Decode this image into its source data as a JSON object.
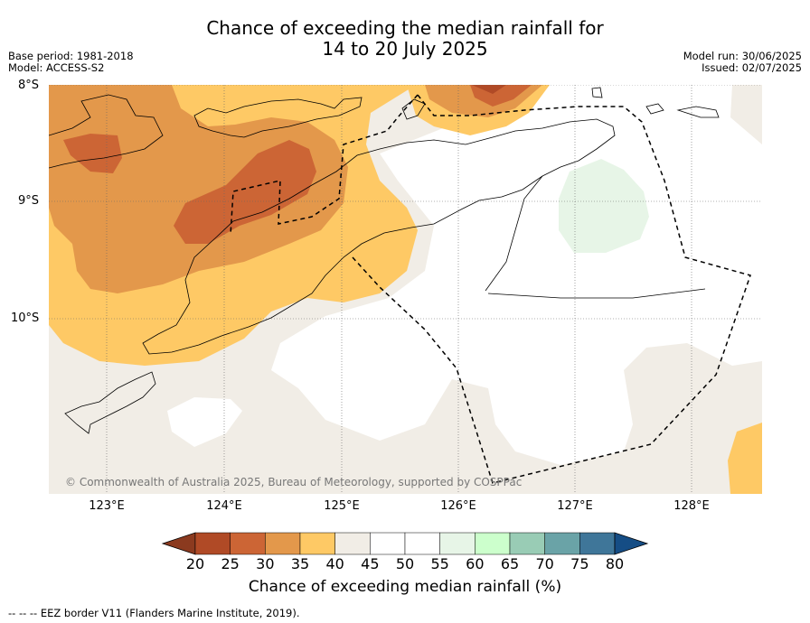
{
  "title_line1": "Chance of exceeding the median rainfall for",
  "title_line2": "14 to 20 July 2025",
  "base_period": "Base period: 1981-2018",
  "model": "Model: ACCESS-S2",
  "model_run": "Model run: 30/06/2025",
  "issued": "Issued: 02/07/2025",
  "copyright": "© Commonwealth of Australia 2025, Bureau of Meteorology, supported by COSPPac",
  "lat_labels": [
    "8°S",
    "9°S",
    "10°S"
  ],
  "lon_labels": [
    "123°E",
    "124°E",
    "125°E",
    "126°E",
    "127°E",
    "128°E"
  ],
  "colorbar": {
    "label": "Chance of exceeding median rainfall (%)",
    "ticks": [
      "20",
      "25",
      "30",
      "35",
      "40",
      "45",
      "50",
      "55",
      "60",
      "65",
      "70",
      "75",
      "80"
    ],
    "colors": [
      "#8b3a1f",
      "#b04a26",
      "#cc6535",
      "#e3984b",
      "#fec965",
      "#f1ede6",
      "#ffffff",
      "#ffffff",
      "#e7f5e7",
      "#ccffcc",
      "#99ccb5",
      "#6aa3a7",
      "#3f7699",
      "#154d85"
    ]
  },
  "footer": "-- -- -- EEZ border V11 (Flanders Marine Institute, 2019)."
}
